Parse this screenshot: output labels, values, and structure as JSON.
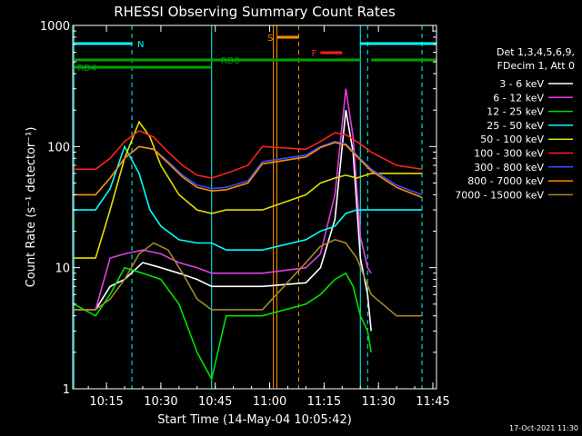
{
  "chart_data": {
    "type": "line",
    "title": "RHESSI Observing Summary Count Rates",
    "xlabel": "Start Time (14-May-04 10:05:42)",
    "ylabel": "Count Rate (s⁻¹ detector⁻¹)",
    "yscale": "log",
    "xlim": [
      "10:05:42",
      "11:46:00"
    ],
    "ylim": [
      1,
      1000
    ],
    "x_ticks": [
      "10:15",
      "10:30",
      "10:45",
      "11:00",
      "11:15",
      "11:30",
      "11:45"
    ],
    "y_ticks": [
      "1",
      "10",
      "100",
      "1000"
    ],
    "legend_header": [
      "Det 1,3,4,5,6,9,",
      "FDecim 1, Att 0"
    ],
    "legend_position": "right",
    "footer_date": "17-Oct-2021 11:30",
    "series": [
      {
        "name": "3 - 6 keV",
        "color": "#ffffff",
        "points": [
          [
            "10:06",
            4.5
          ],
          [
            "10:12",
            4.5
          ],
          [
            "10:16",
            7
          ],
          [
            "10:20",
            8
          ],
          [
            "10:25",
            11
          ],
          [
            "10:30",
            10
          ],
          [
            "10:35",
            9
          ],
          [
            "10:40",
            8
          ],
          [
            "10:44",
            7
          ],
          [
            "10:48",
            7
          ],
          [
            "10:54",
            7
          ],
          [
            "10:58",
            7
          ],
          [
            "11:10",
            7.5
          ],
          [
            "11:14",
            10
          ],
          [
            "11:18",
            25
          ],
          [
            "11:21",
            200
          ],
          [
            "11:23",
            90
          ],
          [
            "11:25",
            12
          ],
          [
            "11:27",
            6
          ],
          [
            "11:28",
            3
          ]
        ]
      },
      {
        "name": "6 - 12 keV",
        "color": "#e040e0",
        "points": [
          [
            "10:06",
            4.5
          ],
          [
            "10:12",
            4.5
          ],
          [
            "10:16",
            12
          ],
          [
            "10:20",
            13
          ],
          [
            "10:25",
            14
          ],
          [
            "10:30",
            13
          ],
          [
            "10:35",
            11
          ],
          [
            "10:40",
            10
          ],
          [
            "10:44",
            9
          ],
          [
            "10:48",
            9
          ],
          [
            "10:54",
            9
          ],
          [
            "10:58",
            9
          ],
          [
            "11:10",
            10
          ],
          [
            "11:14",
            13
          ],
          [
            "11:18",
            40
          ],
          [
            "11:21",
            300
          ],
          [
            "11:23",
            120
          ],
          [
            "11:25",
            18
          ],
          [
            "11:27",
            10
          ],
          [
            "11:28",
            9
          ]
        ]
      },
      {
        "name": "12 - 25 keV",
        "color": "#00e000",
        "points": [
          [
            "10:06",
            5
          ],
          [
            "10:12",
            4
          ],
          [
            "10:16",
            6
          ],
          [
            "10:20",
            10
          ],
          [
            "10:25",
            9
          ],
          [
            "10:30",
            8
          ],
          [
            "10:35",
            5
          ],
          [
            "10:40",
            2
          ],
          [
            "10:44",
            1.2
          ],
          [
            "10:48",
            4
          ],
          [
            "10:54",
            4
          ],
          [
            "10:58",
            4
          ],
          [
            "11:10",
            5
          ],
          [
            "11:14",
            6
          ],
          [
            "11:18",
            8
          ],
          [
            "11:21",
            9
          ],
          [
            "11:23",
            7
          ],
          [
            "11:25",
            4
          ],
          [
            "11:27",
            3
          ],
          [
            "11:28",
            2
          ]
        ]
      },
      {
        "name": "25 - 50 keV",
        "color": "#00ffff",
        "points": [
          [
            "10:06",
            30
          ],
          [
            "10:12",
            30
          ],
          [
            "10:16",
            45
          ],
          [
            "10:20",
            100
          ],
          [
            "10:24",
            60
          ],
          [
            "10:27",
            30
          ],
          [
            "10:30",
            22
          ],
          [
            "10:35",
            17
          ],
          [
            "10:40",
            16
          ],
          [
            "10:44",
            16
          ],
          [
            "10:48",
            14
          ],
          [
            "10:54",
            14
          ],
          [
            "10:58",
            14
          ],
          [
            "11:10",
            17
          ],
          [
            "11:14",
            20
          ],
          [
            "11:18",
            22
          ],
          [
            "11:21",
            28
          ],
          [
            "11:24",
            30
          ],
          [
            "11:28",
            30
          ],
          [
            "11:35",
            30
          ],
          [
            "11:42",
            30
          ]
        ]
      },
      {
        "name": "50 - 100 keV",
        "color": "#e0e000",
        "points": [
          [
            "10:06",
            12
          ],
          [
            "10:12",
            12
          ],
          [
            "10:16",
            30
          ],
          [
            "10:20",
            80
          ],
          [
            "10:24",
            160
          ],
          [
            "10:27",
            120
          ],
          [
            "10:30",
            70
          ],
          [
            "10:35",
            40
          ],
          [
            "10:40",
            30
          ],
          [
            "10:44",
            28
          ],
          [
            "10:48",
            30
          ],
          [
            "10:54",
            30
          ],
          [
            "10:58",
            30
          ],
          [
            "11:10",
            40
          ],
          [
            "11:14",
            50
          ],
          [
            "11:18",
            55
          ],
          [
            "11:21",
            58
          ],
          [
            "11:24",
            55
          ],
          [
            "11:28",
            60
          ],
          [
            "11:35",
            60
          ],
          [
            "11:42",
            60
          ]
        ]
      },
      {
        "name": "100 - 300 keV",
        "color": "#ff2020",
        "points": [
          [
            "10:06",
            65
          ],
          [
            "10:12",
            65
          ],
          [
            "10:16",
            80
          ],
          [
            "10:20",
            110
          ],
          [
            "10:24",
            135
          ],
          [
            "10:28",
            120
          ],
          [
            "10:32",
            90
          ],
          [
            "10:36",
            70
          ],
          [
            "10:40",
            58
          ],
          [
            "10:44",
            55
          ],
          [
            "10:48",
            60
          ],
          [
            "10:54",
            70
          ],
          [
            "10:58",
            100
          ],
          [
            "11:10",
            95
          ],
          [
            "11:14",
            110
          ],
          [
            "11:18",
            130
          ],
          [
            "11:21",
            125
          ],
          [
            "11:24",
            110
          ],
          [
            "11:28",
            90
          ],
          [
            "11:35",
            70
          ],
          [
            "11:42",
            65
          ]
        ]
      },
      {
        "name": "300 - 800 keV",
        "color": "#3050ff",
        "points": [
          [
            "10:06",
            40
          ],
          [
            "10:12",
            40
          ],
          [
            "10:16",
            55
          ],
          [
            "10:20",
            80
          ],
          [
            "10:24",
            100
          ],
          [
            "10:28",
            95
          ],
          [
            "10:32",
            75
          ],
          [
            "10:36",
            58
          ],
          [
            "10:40",
            48
          ],
          [
            "10:44",
            45
          ],
          [
            "10:48",
            46
          ],
          [
            "10:54",
            52
          ],
          [
            "10:58",
            75
          ],
          [
            "11:10",
            85
          ],
          [
            "11:14",
            100
          ],
          [
            "11:18",
            110
          ],
          [
            "11:21",
            105
          ],
          [
            "11:24",
            85
          ],
          [
            "11:28",
            65
          ],
          [
            "11:35",
            48
          ],
          [
            "11:42",
            40
          ]
        ]
      },
      {
        "name": "800 - 7000 keV",
        "color": "#ff8c00",
        "points": [
          [
            "10:06",
            40
          ],
          [
            "10:12",
            40
          ],
          [
            "10:16",
            55
          ],
          [
            "10:20",
            80
          ],
          [
            "10:24",
            100
          ],
          [
            "10:28",
            95
          ],
          [
            "10:32",
            73
          ],
          [
            "10:36",
            56
          ],
          [
            "10:40",
            46
          ],
          [
            "10:44",
            43
          ],
          [
            "10:48",
            44
          ],
          [
            "10:54",
            50
          ],
          [
            "10:58",
            72
          ],
          [
            "11:10",
            82
          ],
          [
            "11:14",
            98
          ],
          [
            "11:18",
            108
          ],
          [
            "11:21",
            103
          ],
          [
            "11:24",
            83
          ],
          [
            "11:28",
            63
          ],
          [
            "11:35",
            46
          ],
          [
            "11:42",
            38
          ]
        ]
      },
      {
        "name": "7000 - 15000 keV",
        "color": "#a08a28",
        "points": [
          [
            "10:06",
            4.5
          ],
          [
            "10:12",
            4.5
          ],
          [
            "10:16",
            5.5
          ],
          [
            "10:20",
            8
          ],
          [
            "10:24",
            13
          ],
          [
            "10:28",
            16
          ],
          [
            "10:32",
            14
          ],
          [
            "10:36",
            9
          ],
          [
            "10:40",
            5.5
          ],
          [
            "10:44",
            4.5
          ],
          [
            "10:48",
            4.5
          ],
          [
            "10:54",
            4.5
          ],
          [
            "10:58",
            4.5
          ],
          [
            "11:10",
            11
          ],
          [
            "11:14",
            15
          ],
          [
            "11:18",
            17
          ],
          [
            "11:21",
            16
          ],
          [
            "11:24",
            12
          ],
          [
            "11:28",
            6
          ],
          [
            "11:35",
            4
          ],
          [
            "11:42",
            4
          ]
        ]
      }
    ],
    "flag_bars": [
      {
        "label": "N",
        "color": "#00ffff",
        "segments": [
          [
            "10:06",
            "10:22"
          ],
          [
            "11:25",
            "11:46"
          ]
        ]
      },
      {
        "label": "S",
        "color": "#ff8c00",
        "segments": [
          [
            "11:02",
            "11:08"
          ]
        ]
      },
      {
        "label": "F",
        "color": "#ff2020",
        "segments": [
          [
            "11:14",
            "11:20"
          ]
        ]
      },
      {
        "label": "RD0",
        "color": "#00a000",
        "segments": [
          [
            "10:06",
            "10:45"
          ],
          [
            "10:45",
            "11:08"
          ],
          [
            "11:08",
            "11:25"
          ],
          [
            "11:28",
            "11:46"
          ]
        ]
      },
      {
        "label": "RD4",
        "color": "#00a000",
        "segments": [
          [
            "10:06",
            "10:44"
          ]
        ]
      }
    ],
    "vertical_markers": [
      {
        "time": "10:06",
        "color": "#00ffff",
        "style": "solid"
      },
      {
        "time": "10:22",
        "color": "#00ffff",
        "style": "dashed"
      },
      {
        "time": "10:44",
        "color": "#00ffff",
        "style": "solid"
      },
      {
        "time": "11:01",
        "color": "#ff8c00",
        "style": "solid"
      },
      {
        "time": "11:02",
        "color": "#ff8c00",
        "style": "solid"
      },
      {
        "time": "11:08",
        "color": "#ff8c00",
        "style": "dashed"
      },
      {
        "time": "11:25",
        "color": "#00ffff",
        "style": "solid"
      },
      {
        "time": "11:27",
        "color": "#00ffff",
        "style": "dashed"
      },
      {
        "time": "11:42",
        "color": "#00ffff",
        "style": "dashed"
      }
    ]
  }
}
